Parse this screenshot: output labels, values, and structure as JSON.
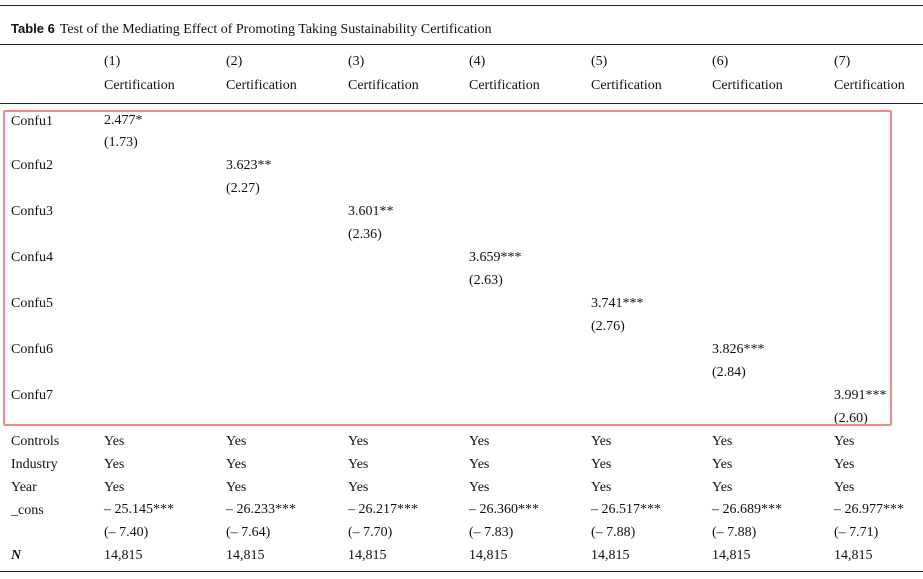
{
  "table": {
    "label": "Table 6",
    "caption": "Test of the Mediating Effect of Promoting Taking Sustainability Certification",
    "columns": [
      {
        "num": "(1)",
        "label": "Certification"
      },
      {
        "num": "(2)",
        "label": "Certification"
      },
      {
        "num": "(3)",
        "label": "Certification"
      },
      {
        "num": "(4)",
        "label": "Certification"
      },
      {
        "num": "(5)",
        "label": "Certification"
      },
      {
        "num": "(6)",
        "label": "Certification"
      },
      {
        "num": "(7)",
        "label": "Certification"
      }
    ],
    "confu_rows": [
      {
        "label": "Confu1",
        "coef": "2.477*",
        "t": "(1.73)"
      },
      {
        "label": "Confu2",
        "coef": "3.623**",
        "t": "(2.27)"
      },
      {
        "label": "Confu3",
        "coef": "3.601**",
        "t": "(2.36)"
      },
      {
        "label": "Confu4",
        "coef": "3.659***",
        "t": "(2.63)"
      },
      {
        "label": "Confu5",
        "coef": "3.741***",
        "t": "(2.76)"
      },
      {
        "label": "Confu6",
        "coef": "3.826***",
        "t": "(2.84)"
      },
      {
        "label": "Confu7",
        "coef": "3.991***",
        "t": "(2.60)"
      }
    ],
    "controls": {
      "label": "Controls",
      "values": [
        "Yes",
        "Yes",
        "Yes",
        "Yes",
        "Yes",
        "Yes",
        "Yes"
      ]
    },
    "industry": {
      "label": "Industry",
      "values": [
        "Yes",
        "Yes",
        "Yes",
        "Yes",
        "Yes",
        "Yes",
        "Yes"
      ]
    },
    "year": {
      "label": "Year",
      "values": [
        "Yes",
        "Yes",
        "Yes",
        "Yes",
        "Yes",
        "Yes",
        "Yes"
      ]
    },
    "cons": {
      "label": "_cons",
      "coefs": [
        "– 25.145***",
        "– 26.233***",
        "– 26.217***",
        "– 26.360***",
        "– 26.517***",
        "– 26.689***",
        "– 26.977***"
      ],
      "ts": [
        "(– 7.40)",
        "(– 7.64)",
        "(– 7.70)",
        "(– 7.83)",
        "(– 7.88)",
        "(– 7.88)",
        "(– 7.71)"
      ]
    },
    "n": {
      "label": "N",
      "values": [
        "14,815",
        "14,815",
        "14,815",
        "14,815",
        "14,815",
        "14,815",
        "14,815"
      ]
    }
  },
  "colors": {
    "highlight_border": "#f0898e",
    "rule": "#222222"
  }
}
